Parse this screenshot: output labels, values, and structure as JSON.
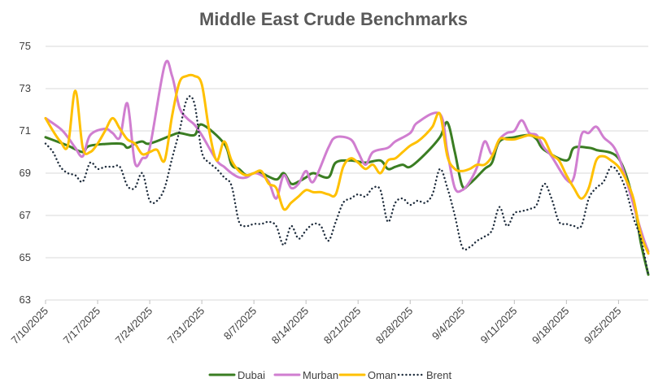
{
  "chart_data": {
    "type": "line",
    "title": "Middle East Crude Benchmarks",
    "xlabel": "",
    "ylabel": "",
    "ylim": [
      63,
      75
    ],
    "yticks": [
      63,
      65,
      67,
      69,
      71,
      73,
      75
    ],
    "xlim": [
      0,
      81
    ],
    "xtick_labels": [
      "7/10/2025",
      "7/17/2025",
      "7/24/2025",
      "7/31/2025",
      "8/7/2025",
      "8/14/2025",
      "8/21/2025",
      "8/28/2025",
      "9/4/2025",
      "9/11/2025",
      "9/18/2025",
      "9/25/2025"
    ],
    "xtick_days": [
      0,
      7,
      14,
      21,
      28,
      35,
      42,
      49,
      56,
      63,
      70,
      77
    ],
    "legend_position": "bottom",
    "series": [
      {
        "name": "Dubai",
        "color": "#3A7D22",
        "dash": "solid",
        "x": [
          0,
          3,
          5,
          6,
          10,
          11,
          12,
          13,
          14,
          17,
          18,
          20,
          21,
          24,
          25,
          26,
          27,
          28,
          29,
          31,
          32,
          33,
          34,
          35,
          36,
          38,
          39,
          41,
          43,
          45,
          46,
          47,
          48,
          49,
          51,
          53,
          54,
          55,
          56,
          57,
          59,
          60,
          61,
          63,
          65,
          66,
          67,
          70,
          71,
          73,
          74,
          77,
          79,
          80,
          81
        ],
        "values": [
          70.7,
          70.3,
          70.0,
          70.3,
          70.4,
          70.2,
          70.4,
          70.5,
          70.4,
          70.8,
          70.9,
          70.8,
          71.3,
          70.4,
          69.4,
          69.2,
          68.9,
          69.0,
          69.0,
          68.7,
          69.0,
          68.5,
          68.6,
          68.8,
          69.0,
          68.8,
          69.5,
          69.6,
          69.5,
          69.6,
          69.2,
          69.3,
          69.4,
          69.3,
          69.9,
          70.7,
          71.4,
          70.0,
          68.4,
          68.5,
          69.2,
          69.5,
          70.5,
          70.7,
          70.8,
          70.6,
          70.1,
          69.6,
          70.2,
          70.2,
          70.1,
          69.7,
          67.7,
          65.7,
          64.2
        ]
      },
      {
        "name": "Murban",
        "color": "#D07ED0",
        "dash": "solid",
        "x": [
          0,
          2,
          3,
          4,
          5,
          6,
          8,
          9,
          10,
          11,
          12,
          13,
          14,
          16,
          17,
          18,
          19,
          20,
          21,
          23,
          24,
          25,
          26,
          27,
          28,
          29,
          30,
          31,
          32,
          33,
          34,
          35,
          36,
          38,
          39,
          41,
          42,
          43,
          44,
          46,
          47,
          49,
          50,
          53,
          54,
          55,
          56,
          57,
          58,
          59,
          60,
          61,
          62,
          63,
          64,
          65,
          66,
          67,
          68,
          70,
          71,
          72,
          73,
          74,
          75,
          77,
          80,
          81
        ],
        "values": [
          71.6,
          71.1,
          70.7,
          70.2,
          69.8,
          70.8,
          71.1,
          70.9,
          70.7,
          72.3,
          69.5,
          69.7,
          70.2,
          74.1,
          73.6,
          72.1,
          71.6,
          71.3,
          70.8,
          69.6,
          69.3,
          69.0,
          68.8,
          68.8,
          69.0,
          68.9,
          68.6,
          67.8,
          68.9,
          68.3,
          68.5,
          69.1,
          68.6,
          70.2,
          70.7,
          70.6,
          70.0,
          69.4,
          70.0,
          70.2,
          70.5,
          70.9,
          71.4,
          71.8,
          70.0,
          68.3,
          68.2,
          68.6,
          69.3,
          70.5,
          69.9,
          70.6,
          70.9,
          71.0,
          71.5,
          70.9,
          70.8,
          70.2,
          69.8,
          68.7,
          68.8,
          70.8,
          70.9,
          71.2,
          70.7,
          69.8,
          66.3,
          65.3
        ]
      },
      {
        "name": "Oman",
        "color": "#FFC000",
        "dash": "solid",
        "x": [
          0,
          1,
          2,
          3,
          4,
          5,
          6,
          7,
          8,
          9,
          10,
          11,
          12,
          13,
          14,
          15,
          16,
          17,
          18,
          19,
          20,
          21,
          22,
          23,
          24,
          25,
          26,
          27,
          28,
          29,
          30,
          31,
          32,
          33,
          34,
          35,
          36,
          37,
          38,
          39,
          40,
          41,
          42,
          43,
          44,
          45,
          46,
          47,
          48,
          49,
          50,
          51,
          52,
          53,
          54,
          55,
          56,
          57,
          58,
          59,
          60,
          61,
          62,
          63,
          64,
          65,
          66,
          67,
          68,
          69,
          70,
          71,
          72,
          73,
          74,
          75,
          76,
          77,
          78,
          79,
          80,
          81
        ],
        "values": [
          71.6,
          71.0,
          70.5,
          70.3,
          72.9,
          70.2,
          70.0,
          70.4,
          71.0,
          71.6,
          71.1,
          70.6,
          70.4,
          69.9,
          70.0,
          70.1,
          69.6,
          71.7,
          73.3,
          73.6,
          73.6,
          73.2,
          71.0,
          69.6,
          70.5,
          69.6,
          69.1,
          68.9,
          69.0,
          69.1,
          68.5,
          68.3,
          67.3,
          67.6,
          67.9,
          68.2,
          68.1,
          68.1,
          68.0,
          68.0,
          69.3,
          69.7,
          69.5,
          69.2,
          69.4,
          69.0,
          69.6,
          69.7,
          70.0,
          70.3,
          70.5,
          70.8,
          71.2,
          71.8,
          69.8,
          69.2,
          69.1,
          69.2,
          69.4,
          69.4,
          69.8,
          70.6,
          70.6,
          70.6,
          70.7,
          70.8,
          70.7,
          70.6,
          69.9,
          69.6,
          68.9,
          68.3,
          67.8,
          68.3,
          69.6,
          69.8,
          69.6,
          69.3,
          68.7,
          67.8,
          66.1,
          65.2
        ]
      },
      {
        "name": "Brent",
        "color": "#1F2D3D",
        "dash": "dotted",
        "x": [
          0,
          1,
          2,
          3,
          4,
          5,
          6,
          7,
          8,
          9,
          10,
          11,
          12,
          13,
          14,
          15,
          16,
          17,
          18,
          19,
          20,
          21,
          22,
          23,
          24,
          25,
          26,
          27,
          28,
          29,
          30,
          31,
          32,
          33,
          34,
          35,
          36,
          37,
          38,
          39,
          40,
          41,
          42,
          43,
          44,
          45,
          46,
          47,
          48,
          49,
          50,
          51,
          52,
          53,
          54,
          55,
          56,
          57,
          58,
          59,
          60,
          61,
          62,
          63,
          64,
          65,
          66,
          67,
          68,
          69,
          70,
          71,
          72,
          73,
          74,
          75,
          76,
          77,
          78,
          79,
          80,
          81
        ],
        "values": [
          70.4,
          70.0,
          69.3,
          69.0,
          68.9,
          68.6,
          69.5,
          69.2,
          69.3,
          69.3,
          69.3,
          68.4,
          68.3,
          69.0,
          67.7,
          67.7,
          68.3,
          69.7,
          71.0,
          72.5,
          72.3,
          70.0,
          69.5,
          69.2,
          68.8,
          68.4,
          66.7,
          66.5,
          66.6,
          66.6,
          66.7,
          66.5,
          65.6,
          66.5,
          65.9,
          66.3,
          66.6,
          66.5,
          65.8,
          66.7,
          67.6,
          67.8,
          68.0,
          67.9,
          68.3,
          68.2,
          66.7,
          67.6,
          67.8,
          67.5,
          67.7,
          67.6,
          68.0,
          69.2,
          68.3,
          67.0,
          65.5,
          65.5,
          65.8,
          66.0,
          66.3,
          67.4,
          66.5,
          67.1,
          67.2,
          67.3,
          67.5,
          68.5,
          67.8,
          66.7,
          66.6,
          66.5,
          66.5,
          67.8,
          68.3,
          68.6,
          69.3,
          69.0,
          68.2,
          66.9,
          65.9,
          64.2
        ]
      }
    ]
  }
}
